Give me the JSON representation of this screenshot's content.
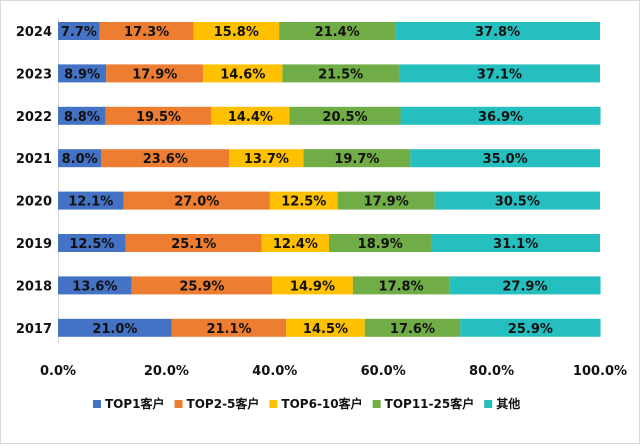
{
  "chart_data": {
    "type": "bar",
    "orientation": "horizontal",
    "stacked": true,
    "title": "",
    "categories": [
      "2024",
      "2023",
      "2022",
      "2021",
      "2020",
      "2019",
      "2018",
      "2017"
    ],
    "series": [
      {
        "name": "TOP1客户",
        "color": "#4472C4",
        "values": [
          7.7,
          8.9,
          8.8,
          8.0,
          12.1,
          12.5,
          13.6,
          21.0
        ]
      },
      {
        "name": "TOP2-5客户",
        "color": "#ED7D31",
        "values": [
          17.3,
          17.9,
          19.5,
          23.6,
          27.0,
          25.1,
          25.9,
          21.1
        ]
      },
      {
        "name": "TOP6-10客户",
        "color": "#FFC000",
        "values": [
          15.8,
          14.6,
          14.4,
          13.7,
          12.5,
          12.4,
          14.9,
          14.5
        ]
      },
      {
        "name": "TOP11-25客户",
        "color": "#70AD47",
        "values": [
          21.4,
          21.5,
          20.5,
          19.7,
          17.9,
          18.9,
          17.8,
          17.6
        ]
      },
      {
        "name": "其他",
        "color": "#26BFBF",
        "values": [
          37.8,
          37.1,
          36.9,
          35.0,
          30.5,
          31.1,
          27.9,
          25.9
        ]
      }
    ],
    "x_ticks": [
      "0.0%",
      "20.0%",
      "40.0%",
      "60.0%",
      "80.0%",
      "100.0%"
    ],
    "xlim": [
      0,
      100
    ],
    "xlabel": "",
    "ylabel": "",
    "grid": false,
    "legend": "bottom"
  }
}
